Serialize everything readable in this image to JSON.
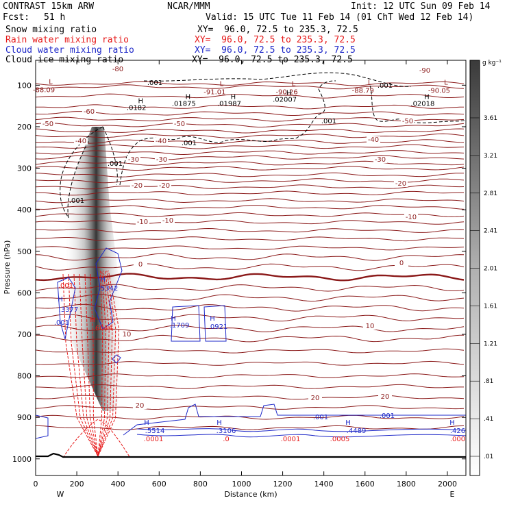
{
  "header": {
    "left_title": "CONTRAST 15km ARW",
    "center_title": "NCAR/MMM",
    "init": "Init: 12 UTC Sun 09 Feb 14",
    "fcst_label": "Fcst:",
    "fcst_value": "51 h",
    "valid": "Valid: 15 UTC Tue 11 Feb 14 (01 ChT Wed 12 Feb 14)"
  },
  "fields": [
    {
      "name": "Snow mixing ratio",
      "xy": "XY=  96.0, 72.5 to 235.3, 72.5",
      "color": "#000000"
    },
    {
      "name": "Rain water mixing ratio",
      "xy": "XY=  96.0, 72.5 to 235.3, 72.5",
      "color": "#e61919"
    },
    {
      "name": "Cloud water mixing ratio",
      "xy": "XY=  96.0, 72.5 to 235.3, 72.5",
      "color": "#1e28c8"
    },
    {
      "name": "Cloud ice mixing ratio",
      "xy": "XY=  96.0, 72.5 to 235.3, 72.5",
      "color": "#000000"
    }
  ],
  "chart_data": {
    "type": "cross-section",
    "xlabel": "Distance (km)",
    "ylabel": "Pressure (hPa)",
    "xlim": [
      0,
      2090
    ],
    "ylim": [
      1040,
      40
    ],
    "x_ticks": [
      "0",
      "200",
      "400",
      "600",
      "800",
      "1000",
      "1200",
      "1400",
      "1600",
      "1800",
      "2000"
    ],
    "y_ticks": [
      "100",
      "200",
      "300",
      "400",
      "500",
      "600",
      "700",
      "800",
      "900",
      "1000"
    ],
    "left_end_label": "W",
    "right_end_label": "E",
    "temperature_contours": [
      {
        "value": -90,
        "labels": [
          "-90"
        ]
      },
      {
        "value": -80,
        "labels": [
          "-80"
        ]
      },
      {
        "value": -60,
        "labels": [
          "-60"
        ]
      },
      {
        "value": -50,
        "labels": [
          "-50",
          "-50",
          "-50"
        ]
      },
      {
        "value": -40,
        "labels": [
          "-40",
          "-40",
          "-40"
        ]
      },
      {
        "value": -30,
        "labels": [
          "-30",
          "-30",
          "-30"
        ]
      },
      {
        "value": -20,
        "labels": [
          "-20",
          "-20",
          "-20"
        ]
      },
      {
        "value": -10,
        "labels": [
          "-10",
          "-10",
          "-10"
        ]
      },
      {
        "value": 0,
        "labels": [
          "0",
          "0"
        ]
      },
      {
        "value": 10,
        "labels": [
          "10",
          "10"
        ]
      },
      {
        "value": 20,
        "labels": [
          "20",
          "20",
          "20"
        ]
      }
    ],
    "low_labels": [
      {
        "x": 40,
        "p": 110,
        "text": "-88.09"
      },
      {
        "x": 870,
        "p": 115,
        "text": "-91.01"
      },
      {
        "x": 1220,
        "p": 115,
        "text": "-90.26"
      },
      {
        "x": 1590,
        "p": 112,
        "text": "-88.79"
      },
      {
        "x": 1960,
        "p": 112,
        "text": "-90.05"
      }
    ],
    "snow_high_labels": [
      {
        "x": 490,
        "p": 160,
        "text": ".0182"
      },
      {
        "x": 720,
        "p": 150,
        "text": ".01875"
      },
      {
        "x": 940,
        "p": 150,
        "text": ".01987"
      },
      {
        "x": 1210,
        "p": 140,
        "text": ".02007"
      },
      {
        "x": 1880,
        "p": 150,
        "text": ".02018"
      }
    ],
    "snow_contour_labels": [
      ".001",
      ".001",
      ".001",
      ".001",
      ".001",
      ".001"
    ],
    "rain_labels": [
      ".001",
      ".6044",
      ".0001",
      ".0",
      ".0001",
      ".0005",
      ".000"
    ],
    "cloud_water_labels": [
      ".3377",
      ".001",
      ".5342",
      ".1709",
      ".0921",
      ".5514",
      ".3106",
      ".4489",
      ".426",
      ".001",
      ".001"
    ],
    "colorbar": {
      "unit": "g kg⁻¹",
      "labels": [
        "3.61",
        "3.21",
        "2.81",
        "2.41",
        "2.01",
        "1.61",
        "1.21",
        ".81",
        ".41",
        ".01"
      ]
    },
    "colors": {
      "temperature": "#8b1a1a",
      "rain": "#e61919",
      "cloud_water": "#1e28c8",
      "snow": "#000000"
    }
  }
}
